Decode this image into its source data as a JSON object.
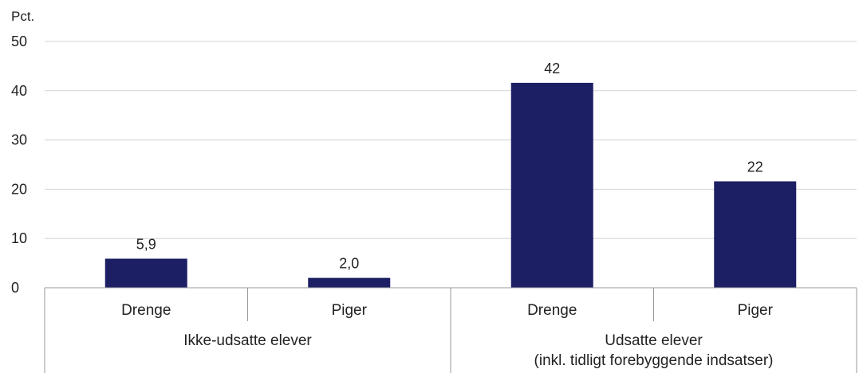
{
  "chart_data": {
    "type": "bar",
    "title": "",
    "ylabel": "Pct.",
    "xlabel": "",
    "ylim": [
      0,
      50
    ],
    "yticks": [
      0,
      10,
      20,
      30,
      40,
      50
    ],
    "grid": true,
    "categories": [
      "Drenge",
      "Piger",
      "Drenge",
      "Piger"
    ],
    "values": [
      5.9,
      2.0,
      41.6,
      21.6
    ],
    "value_labels": [
      "5,9",
      "2,0",
      "42",
      "22"
    ],
    "groups": [
      {
        "label": "Ikke-udsatte elever",
        "categories": [
          0,
          1
        ]
      },
      {
        "label": "Udsatte elever",
        "label_line2": "(inkl. tidligt forebyggende indsatser)",
        "categories": [
          2,
          3
        ]
      }
    ],
    "bar_color": "#1c1f64",
    "grid_color": "#d3d3d3",
    "axis_color": "#9a9a9a"
  }
}
